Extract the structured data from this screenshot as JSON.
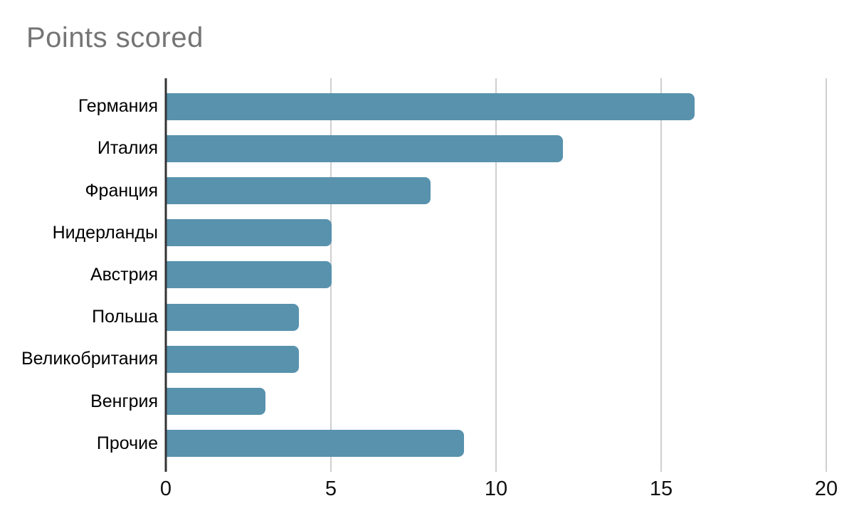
{
  "chart_data": {
    "type": "bar",
    "orientation": "horizontal",
    "title": "Points scored",
    "categories": [
      "Германия",
      "Италия",
      "Франция",
      "Нидерланды",
      "Австрия",
      "Польша",
      "Великобритания",
      "Венгрия",
      "Прочие"
    ],
    "values": [
      16,
      12,
      8,
      5,
      5,
      4,
      4,
      3,
      9
    ],
    "xlabel": "",
    "ylabel": "",
    "xlim": [
      0,
      20
    ],
    "x_ticks": [
      0,
      5,
      10,
      15,
      20
    ],
    "grid": true,
    "legend": "none",
    "colors": {
      "bar": "#5892ad",
      "zero_axis_line": "#333333",
      "gridline": "#cfcfcf",
      "title_text": "#757575",
      "label_text": "#000000"
    }
  }
}
